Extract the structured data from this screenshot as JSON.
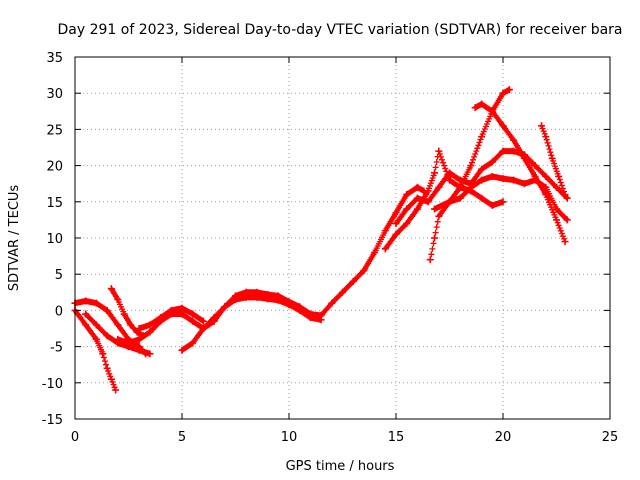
{
  "chart_data": {
    "type": "scatter",
    "title": "Day 291 of 2023, Sidereal Day-to-day VTEC variation (SDTVAR) for receiver bara",
    "xlabel": "GPS time / hours",
    "ylabel": "SDTVAR / TECUs",
    "xlim": [
      0,
      25
    ],
    "ylim": [
      -15,
      35
    ],
    "xticks": [
      0,
      5,
      10,
      15,
      20,
      25
    ],
    "yticks": [
      -15,
      -10,
      -5,
      0,
      5,
      10,
      15,
      20,
      25,
      30,
      35
    ],
    "grid": true,
    "marker": "+",
    "color": "#ff0000",
    "series": [
      {
        "name": "trace-1",
        "x": [
          0.0,
          0.5,
          1.0,
          1.3,
          1.5,
          1.7,
          1.9
        ],
        "y": [
          0.0,
          -2.0,
          -4.0,
          -6.0,
          -8.0,
          -9.5,
          -11.0
        ]
      },
      {
        "name": "trace-2",
        "x": [
          0.0,
          0.5,
          1.0,
          1.5,
          2.0,
          2.5,
          3.0,
          3.3
        ],
        "y": [
          1.0,
          1.3,
          1.0,
          0.0,
          -2.0,
          -4.0,
          -5.0,
          -6.0
        ]
      },
      {
        "name": "trace-3",
        "x": [
          0.5,
          1.0,
          1.5,
          2.0,
          2.5,
          3.0,
          3.5
        ],
        "y": [
          -0.5,
          -2.0,
          -3.5,
          -4.5,
          -5.0,
          -5.5,
          -6.0
        ]
      },
      {
        "name": "trace-4",
        "x": [
          1.7,
          2.0,
          2.3,
          2.6,
          2.9,
          3.2
        ],
        "y": [
          3.0,
          1.5,
          -0.5,
          -2.0,
          -3.0,
          -3.5
        ]
      },
      {
        "name": "trace-5",
        "x": [
          2.0,
          2.5,
          3.0,
          3.5,
          4.0,
          4.5,
          5.0,
          5.5,
          6.0,
          6.5,
          7.0,
          7.5,
          8.0,
          8.5,
          9.0,
          9.5,
          10.0,
          10.5,
          11.0,
          11.5,
          12.0,
          12.5,
          13.0,
          13.5,
          14.0,
          14.5,
          15.0,
          15.5,
          16.0,
          16.3
        ],
        "y": [
          -4.0,
          -4.5,
          -4.0,
          -3.0,
          -1.5,
          -0.5,
          -0.5,
          -1.5,
          -2.5,
          -1.5,
          0.5,
          2.0,
          2.5,
          2.5,
          2.2,
          2.0,
          1.2,
          0.5,
          -0.5,
          -0.7,
          1.0,
          2.5,
          4.0,
          5.5,
          8.0,
          11.0,
          13.5,
          16.0,
          17.0,
          16.5
        ]
      },
      {
        "name": "trace-6",
        "x": [
          3.0,
          3.5,
          4.0,
          4.5,
          5.0,
          5.5,
          6.0
        ],
        "y": [
          -2.5,
          -2.0,
          -1.0,
          0.0,
          0.3,
          -0.5,
          -1.5
        ]
      },
      {
        "name": "trace-7",
        "x": [
          5.0,
          5.5,
          6.0,
          6.5,
          7.0,
          7.5,
          8.0,
          8.5,
          9.0,
          9.5,
          10.0,
          10.5,
          11.0,
          11.5
        ],
        "y": [
          -5.5,
          -4.5,
          -2.5,
          -1.0,
          0.5,
          1.5,
          1.8,
          1.8,
          1.6,
          1.4,
          0.8,
          0.0,
          -1.0,
          -1.3
        ]
      },
      {
        "name": "trace-8",
        "x": [
          14.5,
          15.0,
          15.5,
          16.0,
          16.5,
          16.8,
          17.0,
          17.5,
          18.0,
          18.5,
          19.0,
          19.5,
          20.0
        ],
        "y": [
          8.5,
          10.5,
          12.0,
          14.0,
          16.5,
          19.0,
          22.0,
          18.0,
          17.0,
          16.5,
          15.5,
          14.5,
          15.0
        ]
      },
      {
        "name": "trace-9",
        "x": [
          15.0,
          15.5,
          16.0,
          16.5,
          17.0,
          17.5,
          18.0,
          18.5,
          19.0,
          19.5,
          20.0,
          20.5,
          21.0,
          21.5,
          22.0,
          22.5,
          23.0
        ],
        "y": [
          12.0,
          14.0,
          15.5,
          15.0,
          17.0,
          19.0,
          18.0,
          17.5,
          19.5,
          20.5,
          22.0,
          22.0,
          21.5,
          20.0,
          18.5,
          17.0,
          15.5
        ]
      },
      {
        "name": "trace-10",
        "x": [
          16.6,
          16.8,
          17.0,
          17.5,
          18.0,
          18.5,
          19.0,
          19.5,
          20.0,
          20.3
        ],
        "y": [
          7.0,
          10.0,
          13.0,
          15.0,
          17.0,
          20.0,
          24.0,
          27.5,
          30.0,
          30.5
        ]
      },
      {
        "name": "trace-11",
        "x": [
          16.8,
          17.5,
          18.0,
          18.5,
          19.0,
          19.5,
          20.0,
          20.5,
          21.0,
          21.5,
          22.0,
          22.5,
          23.0
        ],
        "y": [
          14.0,
          15.0,
          15.5,
          17.0,
          18.0,
          18.5,
          18.2,
          18.0,
          17.5,
          18.0,
          17.0,
          14.0,
          12.5
        ]
      },
      {
        "name": "trace-12",
        "x": [
          18.7,
          19.0,
          19.5,
          20.0,
          20.5,
          21.0,
          21.5,
          22.0,
          22.5,
          22.9
        ],
        "y": [
          28.0,
          28.5,
          27.5,
          25.5,
          23.5,
          21.0,
          18.5,
          16.0,
          12.5,
          9.5
        ]
      },
      {
        "name": "trace-13",
        "x": [
          21.8,
          22.0,
          22.3,
          22.6,
          22.9
        ],
        "y": [
          25.5,
          24.0,
          21.0,
          18.5,
          16.0
        ]
      }
    ]
  }
}
